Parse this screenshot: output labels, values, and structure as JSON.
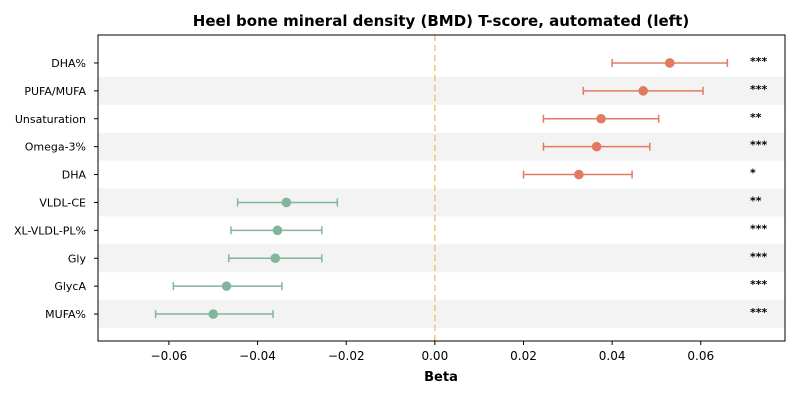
{
  "chart_data": {
    "type": "forest",
    "title": "Heel bone mineral density (BMD) T-score, automated (left)",
    "xlabel": "Beta",
    "xlim": [
      -0.076,
      0.079
    ],
    "xticks": [
      -0.06,
      -0.04,
      -0.02,
      0.0,
      0.02,
      0.04,
      0.06
    ],
    "xtick_labels": [
      "−0.06",
      "−0.04",
      "−0.02",
      "0.00",
      "0.02",
      "0.04",
      "0.06"
    ],
    "reference_line": 0,
    "grid": false,
    "row_shading": "alternating",
    "colors": {
      "positive": "#e07b62",
      "negative": "#83b59d",
      "reference": "#f2c27a",
      "stripe": "#f3f3f3"
    },
    "rows": [
      {
        "label": "DHA%",
        "beta": 0.053,
        "lower": 0.04,
        "upper": 0.066,
        "sig": "***"
      },
      {
        "label": "PUFA/MUFA",
        "beta": 0.047,
        "lower": 0.0335,
        "upper": 0.0605,
        "sig": "***"
      },
      {
        "label": "Unsaturation",
        "beta": 0.0375,
        "lower": 0.0245,
        "upper": 0.0505,
        "sig": "**"
      },
      {
        "label": "Omega-3%",
        "beta": 0.0365,
        "lower": 0.0245,
        "upper": 0.0485,
        "sig": "***"
      },
      {
        "label": "DHA",
        "beta": 0.0325,
        "lower": 0.02,
        "upper": 0.0445,
        "sig": "*"
      },
      {
        "label": "VLDL-CE",
        "beta": -0.0335,
        "lower": -0.0445,
        "upper": -0.022,
        "sig": "**"
      },
      {
        "label": "XL-VLDL-PL%",
        "beta": -0.0355,
        "lower": -0.046,
        "upper": -0.0255,
        "sig": "***"
      },
      {
        "label": "Gly",
        "beta": -0.036,
        "lower": -0.0465,
        "upper": -0.0255,
        "sig": "***"
      },
      {
        "label": "GlycA",
        "beta": -0.047,
        "lower": -0.059,
        "upper": -0.0345,
        "sig": "***"
      },
      {
        "label": "MUFA%",
        "beta": -0.05,
        "lower": -0.063,
        "upper": -0.0365,
        "sig": "***"
      }
    ]
  }
}
